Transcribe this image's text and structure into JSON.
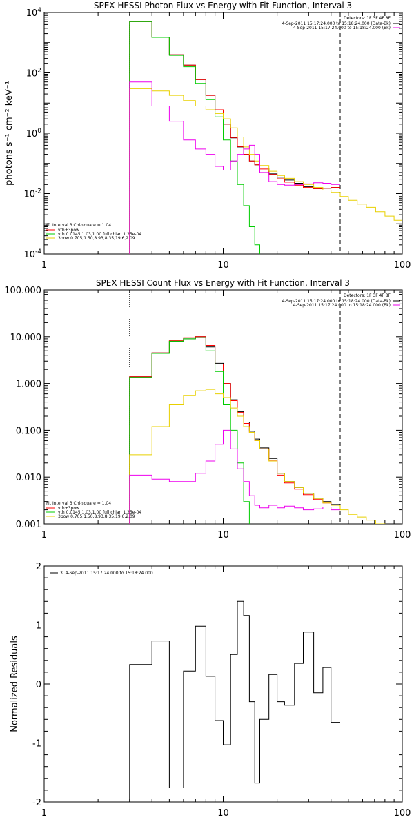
{
  "colors": {
    "total": "#000000",
    "fit": "#ff0000",
    "thermal": "#00cc00",
    "nonthermal": "#e8d000",
    "background": "#ee00ee"
  },
  "chart_data": [
    {
      "type": "line",
      "title": "SPEX HESSI Photon Flux vs Energy with Fit Function, Interval 3",
      "ylabel": "photons s⁻¹ cm⁻² keV⁻¹",
      "xscale": "log",
      "yscale": "log",
      "xlim": [
        1,
        100
      ],
      "ylim": [
        0.0001,
        10000
      ],
      "xticks": [
        "1",
        "10",
        "100"
      ],
      "yticks": [
        {
          "base": "10",
          "exp": "4",
          "v": 10000
        },
        {
          "base": "10",
          "exp": "2",
          "v": 100
        },
        {
          "base": "10",
          "exp": "0",
          "v": 1
        },
        {
          "base": "10",
          "exp": "-2",
          "v": 0.01
        },
        {
          "base": "10",
          "exp": "-4",
          "v": 0.0001
        }
      ],
      "vlines": [
        {
          "x": 3,
          "style": "dotted"
        },
        {
          "x": 45,
          "style": "dashed"
        }
      ],
      "legend_top": [
        "Detectors: 1F 3F 4F 8F",
        "4-Sep-2011 15:17:24.000 to 15:18:24.000 (Data-Bk)",
        "4-Sep-2011 15:17:24.000 to 15:18:24.000 (Bk)"
      ],
      "legend_bottom": [
        "Fit Interval 3   Chi-square = 1.04",
        "vth+3pow",
        "vth 0.0145,1.03,1.00  full chian 1.25e-04",
        "3pow 0.705,1.50,8.93,8.35,19.6,2.09"
      ],
      "edges": [
        3,
        4,
        5,
        6,
        7,
        8,
        9,
        10,
        11,
        12,
        13,
        14,
        15,
        16,
        18,
        20,
        22,
        25,
        28,
        32,
        36,
        40,
        45,
        50,
        56,
        63,
        71,
        80,
        90,
        100
      ],
      "series": [
        {
          "key": "total",
          "color_key": "total",
          "values": [
            5000,
            1500,
            400,
            180,
            60,
            18,
            6,
            2.0,
            0.7,
            0.35,
            0.2,
            0.12,
            0.09,
            0.07,
            0.045,
            0.035,
            0.028,
            0.022,
            0.017,
            0.0145,
            0.015,
            0.016,
            null,
            null,
            null,
            null,
            null,
            null,
            null
          ]
        },
        {
          "key": "fit",
          "color_key": "fit",
          "values": [
            5000,
            1500,
            400,
            180,
            60,
            18,
            6,
            2.0,
            0.72,
            0.36,
            0.2,
            0.12,
            0.09,
            0.065,
            0.043,
            0.031,
            0.024,
            0.019,
            0.016,
            0.0145,
            0.015,
            0.016,
            null,
            null,
            null,
            null,
            null,
            null,
            null
          ]
        },
        {
          "key": "thermal",
          "color_key": "thermal",
          "values": [
            5000,
            1500,
            380,
            160,
            45,
            13,
            3.5,
            0.6,
            0.12,
            0.02,
            0.004,
            0.0008,
            0.0002,
            5e-05,
            null,
            null,
            null,
            null,
            null,
            null,
            null,
            null,
            null,
            null,
            null,
            null,
            null,
            null,
            null
          ]
        },
        {
          "key": "nonthermal",
          "color_key": "nonthermal",
          "values": [
            30,
            25,
            18,
            12,
            8,
            6,
            4.5,
            3.0,
            1.5,
            0.75,
            0.35,
            0.2,
            0.12,
            0.085,
            0.055,
            0.04,
            0.032,
            0.025,
            0.02,
            0.016,
            0.013,
            0.011,
            0.008,
            0.006,
            0.0045,
            0.0035,
            0.0025,
            0.0018,
            0.0013
          ]
        },
        {
          "key": "background",
          "color_key": "background",
          "values": [
            50,
            8,
            2.5,
            0.6,
            0.3,
            0.2,
            0.08,
            0.06,
            0.12,
            0.2,
            0.3,
            0.4,
            0.2,
            0.05,
            0.025,
            0.02,
            0.019,
            0.02,
            0.021,
            0.023,
            0.022,
            0.02,
            null,
            null,
            null,
            null,
            null,
            null,
            null
          ]
        }
      ]
    },
    {
      "type": "line",
      "title": "SPEX HESSI Count Flux vs Energy with Fit Function, Interval 3",
      "ylabel": "",
      "xscale": "log",
      "yscale": "log",
      "xlim": [
        1,
        100
      ],
      "ylim": [
        0.001,
        100
      ],
      "xticks": [
        "1",
        "10",
        "100"
      ],
      "yticks": [
        {
          "base": "100.000",
          "v": 100
        },
        {
          "base": "10.000",
          "v": 10
        },
        {
          "base": "1.000",
          "v": 1
        },
        {
          "base": "0.100",
          "v": 0.1
        },
        {
          "base": "0.010",
          "v": 0.01
        },
        {
          "base": "0.001",
          "v": 0.001
        }
      ],
      "vlines": [
        {
          "x": 3,
          "style": "dotted"
        },
        {
          "x": 45,
          "style": "dashed"
        }
      ],
      "legend_top": [
        "Detectors: 1F 3F 4F 8F",
        "4-Sep-2011 15:17:24.000 to 15:18:24.000 (Data-Bk)",
        "4-Sep-2011 15:17:24.000 to 15:18:24.000 (Bk)"
      ],
      "legend_bottom": [
        "Fit Interval 3   Chi-square = 1.04",
        "vth+3pow",
        "vth 0.0145,1.03,1.00  full chian 1.25e-04",
        "3pow 0.705,1.50,8.93,8.35,19.6,2.09"
      ],
      "edges": [
        3,
        4,
        5,
        6,
        7,
        8,
        9,
        10,
        11,
        12,
        13,
        14,
        15,
        16,
        18,
        20,
        22,
        25,
        28,
        32,
        36,
        40,
        45,
        50,
        56,
        63,
        71,
        80,
        90,
        100
      ],
      "series": [
        {
          "key": "total",
          "color_key": "total",
          "values": [
            1.4,
            4.5,
            8,
            9,
            10,
            6,
            2.7,
            1.0,
            0.45,
            0.25,
            0.15,
            0.095,
            0.065,
            0.042,
            0.025,
            0.012,
            0.008,
            0.006,
            0.0045,
            0.0035,
            0.003,
            0.0026,
            null,
            null,
            null,
            null,
            null,
            null,
            null
          ]
        },
        {
          "key": "fit",
          "color_key": "fit",
          "values": [
            1.4,
            4.5,
            8.2,
            9.5,
            10,
            6.5,
            2.6,
            1.0,
            0.43,
            0.24,
            0.14,
            0.09,
            0.06,
            0.04,
            0.023,
            0.011,
            0.0075,
            0.0055,
            0.0042,
            0.0033,
            0.0028,
            0.0025,
            null,
            null,
            null,
            null,
            null,
            null,
            null
          ]
        },
        {
          "key": "thermal",
          "color_key": "thermal",
          "values": [
            1.35,
            4.4,
            8,
            9,
            9.5,
            5,
            1.8,
            0.35,
            0.1,
            0.02,
            0.003,
            0.0005,
            null,
            null,
            null,
            null,
            null,
            null,
            null,
            null,
            null,
            null,
            null,
            null,
            null,
            null,
            null,
            null,
            null
          ]
        },
        {
          "key": "nonthermal",
          "color_key": "nonthermal",
          "values": [
            0.03,
            0.12,
            0.35,
            0.55,
            0.7,
            0.75,
            0.6,
            0.5,
            0.3,
            0.2,
            0.12,
            0.09,
            0.06,
            0.04,
            0.022,
            0.012,
            0.008,
            0.006,
            0.0045,
            0.0035,
            0.0028,
            0.0025,
            0.002,
            0.0016,
            0.0014,
            0.0012,
            0.001,
            0.0009,
            null
          ]
        },
        {
          "key": "background",
          "color_key": "background",
          "values": [
            0.011,
            0.009,
            0.008,
            0.008,
            0.012,
            0.022,
            0.05,
            0.1,
            0.04,
            0.015,
            0.008,
            0.004,
            0.0025,
            0.0022,
            0.0025,
            0.0022,
            0.0024,
            0.0022,
            0.002,
            0.0021,
            0.0023,
            0.002,
            null,
            null,
            null,
            null,
            null,
            null,
            null
          ]
        }
      ]
    },
    {
      "type": "line",
      "title": "",
      "ylabel": "Normalized Residuals",
      "xscale": "log",
      "yscale": "linear",
      "xlim": [
        1,
        100
      ],
      "ylim": [
        -2,
        2
      ],
      "xticks": [
        "1",
        "10",
        "100"
      ],
      "yticks": [
        {
          "base": "2",
          "v": 2
        },
        {
          "base": "1",
          "v": 1
        },
        {
          "base": "0",
          "v": 0
        },
        {
          "base": "-1",
          "v": -1
        },
        {
          "base": "-2",
          "v": -2
        }
      ],
      "vlines": [],
      "legend_top": [
        "3.  4-Sep-2011 15:17:24.000 to 15:18:24.000"
      ],
      "legend_bottom": [],
      "edges": [
        3,
        4,
        5,
        6,
        7,
        8,
        9,
        10,
        11,
        12,
        13,
        14,
        15,
        16,
        18,
        20,
        22,
        25,
        28,
        32,
        36,
        40,
        45
      ],
      "series": [
        {
          "key": "residuals",
          "color_key": "total",
          "values": [
            0.33,
            0.73,
            -1.76,
            0.22,
            0.98,
            0.13,
            -0.62,
            -1.03,
            0.5,
            1.4,
            1.16,
            -0.3,
            -1.68,
            -0.6,
            0.16,
            -0.3,
            -0.36,
            0.35,
            0.88,
            -0.15,
            0.28,
            -0.65
          ]
        }
      ]
    }
  ]
}
